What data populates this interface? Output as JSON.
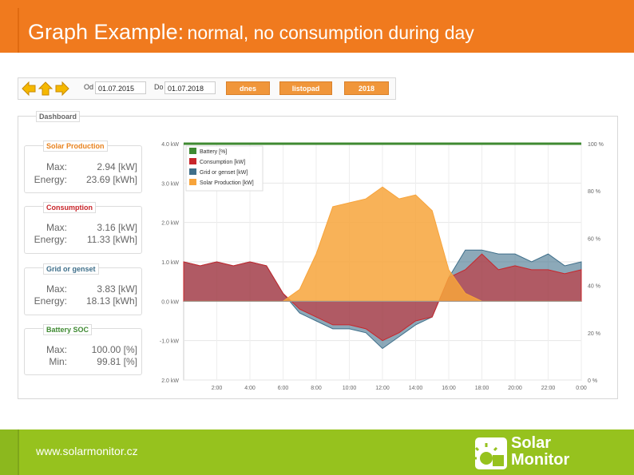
{
  "title": {
    "main": "Graph Example:",
    "sub": "normal, no consumption during day"
  },
  "toolbar": {
    "from_label": "Od",
    "from_date": "01.07.2015",
    "to_label": "Do",
    "to_date": "01.07.2018",
    "btn_today": "dnes",
    "btn_month": "listopad",
    "btn_year": "2018"
  },
  "dashboard": {
    "label": "Dashboard",
    "panels": [
      {
        "title": "Solar Production",
        "k1": "Max:",
        "v1": "2.94 [kW]",
        "k2": "Energy:",
        "v2": "23.69 [kWh]"
      },
      {
        "title": "Consumption",
        "k1": "Max:",
        "v1": "3.16 [kW]",
        "k2": "Energy:",
        "v2": "11.33 [kWh]"
      },
      {
        "title": "Grid or genset",
        "k1": "Max:",
        "v1": "3.83 [kW]",
        "k2": "Energy:",
        "v2": "18.13 [kWh]"
      },
      {
        "title": "Battery SOC",
        "k1": "Max:",
        "v1": "100.00 [%]",
        "k2": "Min:",
        "v2": "99.81 [%]"
      }
    ]
  },
  "chart_data": {
    "type": "area",
    "x": [
      "00:00",
      "01:00",
      "02:00",
      "03:00",
      "04:00",
      "05:00",
      "06:00",
      "07:00",
      "08:00",
      "09:00",
      "10:00",
      "11:00",
      "12:00",
      "13:00",
      "14:00",
      "15:00",
      "16:00",
      "17:00",
      "18:00",
      "19:00",
      "20:00",
      "21:00",
      "22:00",
      "23:00",
      "24:00"
    ],
    "x_ticks": [
      "2:00",
      "4:00",
      "6:00",
      "8:00",
      "10:00",
      "12:00",
      "14:00",
      "16:00",
      "18:00",
      "20:00",
      "22:00",
      "0:00"
    ],
    "y_left_ticks": [
      "4.0 kW",
      "3.0 kW",
      "2.0 kW",
      "1.0 kW",
      "0.0 kW",
      "-1.0 kW",
      "2.0 kW"
    ],
    "y_left_range": [
      -2,
      4
    ],
    "y_right_ticks": [
      "100 %",
      "80 %",
      "60 %",
      "40 %",
      "20 %",
      "0 %"
    ],
    "y_right_range": [
      0,
      100
    ],
    "series": [
      {
        "name": "Battery [%]",
        "color": "#3f8a32",
        "axis": "right",
        "values": [
          100,
          100,
          100,
          100,
          100,
          100,
          100,
          100,
          100,
          100,
          100,
          100,
          100,
          100,
          100,
          100,
          100,
          100,
          100,
          100,
          100,
          100,
          100,
          100,
          100
        ]
      },
      {
        "name": "Consumption [kW]",
        "color": "#c8262b",
        "axis": "left",
        "values": [
          1.0,
          0.9,
          1.0,
          0.9,
          1.0,
          0.9,
          0.2,
          -0.2,
          -0.4,
          -0.6,
          -0.6,
          -0.7,
          -1.0,
          -0.8,
          -0.5,
          -0.4,
          0.6,
          0.8,
          1.2,
          0.8,
          0.9,
          0.8,
          0.8,
          0.7,
          0.8
        ]
      },
      {
        "name": "Grid or genset [kW]",
        "color": "#3f6f8a",
        "axis": "left",
        "values": [
          1.0,
          0.9,
          1.0,
          0.9,
          1.0,
          0.9,
          0.2,
          -0.3,
          -0.5,
          -0.7,
          -0.7,
          -0.8,
          -1.2,
          -0.9,
          -0.6,
          -0.4,
          0.6,
          1.3,
          1.3,
          1.2,
          1.2,
          1.0,
          1.2,
          0.9,
          1.0
        ]
      },
      {
        "name": "Solar Production [kW]",
        "color": "#f7a43b",
        "axis": "left",
        "values": [
          0,
          0,
          0,
          0,
          0,
          0,
          0,
          0.3,
          1.2,
          2.4,
          2.5,
          2.6,
          2.9,
          2.6,
          2.7,
          2.3,
          0.8,
          0.2,
          0,
          0,
          0,
          0,
          0,
          0,
          0
        ]
      }
    ]
  },
  "footer": {
    "url": "www.solarmonitor.cz",
    "logo_line1": "Solar",
    "logo_line2": "Monitor"
  }
}
